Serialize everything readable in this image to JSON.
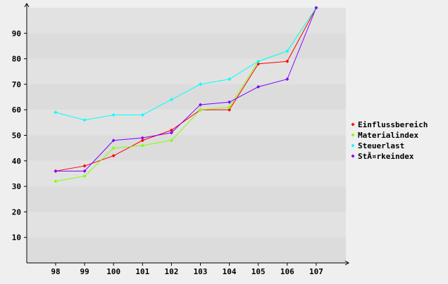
{
  "chart_data": {
    "type": "line",
    "categories": [
      "98",
      "99",
      "100",
      "101",
      "102",
      "103",
      "104",
      "105",
      "106",
      "107"
    ],
    "y_ticks": [
      "10",
      "20",
      "30",
      "40",
      "50",
      "60",
      "70",
      "80",
      "90"
    ],
    "ylim": [
      0,
      100
    ],
    "grid": true,
    "legend_position": "right",
    "series": [
      {
        "name": "Einflussbereich",
        "color": "#ff0000",
        "values": [
          36,
          38,
          42,
          48,
          52,
          60,
          60,
          78,
          79,
          100
        ]
      },
      {
        "name": "Materialindex",
        "color": "#80ff00",
        "values": [
          32,
          34,
          45,
          46,
          48,
          60,
          61,
          79,
          83,
          100
        ]
      },
      {
        "name": "Steuerlast",
        "color": "#00ffff",
        "values": [
          59,
          56,
          58,
          58,
          64,
          70,
          72,
          79,
          83,
          100
        ]
      },
      {
        "name": "StÃ¤rkeindex",
        "color": "#8000ff",
        "values": [
          36,
          36,
          48,
          49,
          51,
          62,
          63,
          69,
          72,
          100
        ]
      }
    ]
  }
}
